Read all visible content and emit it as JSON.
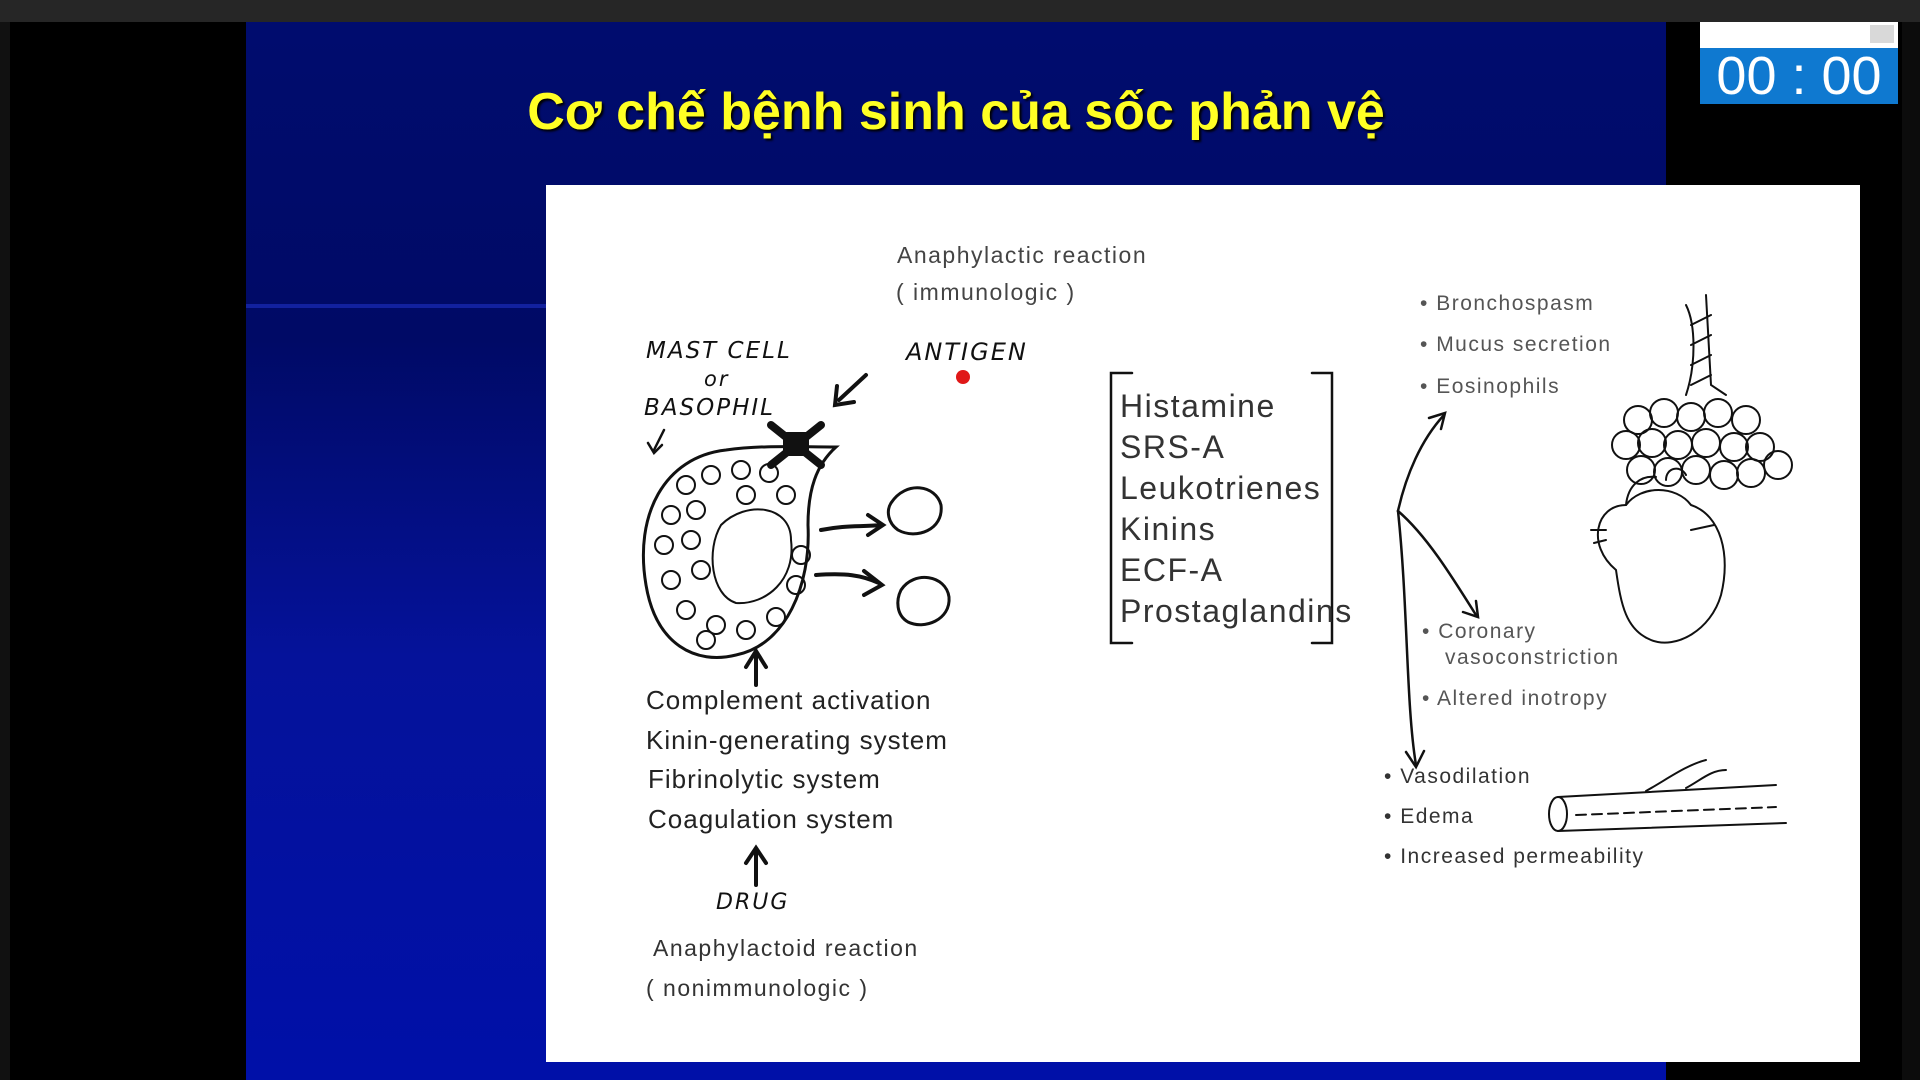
{
  "slide": {
    "title": "Cơ chế bệnh sinh của sốc phản vệ"
  },
  "figure": {
    "top_label": "Anaphylactic reaction",
    "top_label_sub": "( immunologic )",
    "mast_cell_line1": "MAST CELL",
    "mast_cell_line2": "or",
    "mast_cell_line3": "BASOPHIL",
    "antigen": "ANTIGEN",
    "mediators": [
      "Histamine",
      "SRS-A",
      "Leukotrienes",
      "Kinins",
      "ECF-A",
      "Prostaglandins"
    ],
    "triggers": [
      "Complement activation",
      "Kinin-generating system",
      "Fibrinolytic system",
      "Coagulation system"
    ],
    "drug": "DRUG",
    "bottom_label": "Anaphylactoid reaction",
    "bottom_label_sub": "( nonimmunologic )",
    "lung_effects": [
      "Bronchospasm",
      "Mucus secretion",
      "Eosinophils"
    ],
    "heart_effects": [
      "Coronary",
      "vasoconstriction",
      "Altered inotropy"
    ],
    "vessel_effects": [
      "Vasodilation",
      "Edema",
      "Increased permeability"
    ]
  },
  "timer": {
    "value": "00 : 00"
  },
  "colors": {
    "slide_background": "#000a66",
    "title": "#ffff24",
    "timer_background": "#0f79d0",
    "pointer_dot": "#e01818"
  }
}
